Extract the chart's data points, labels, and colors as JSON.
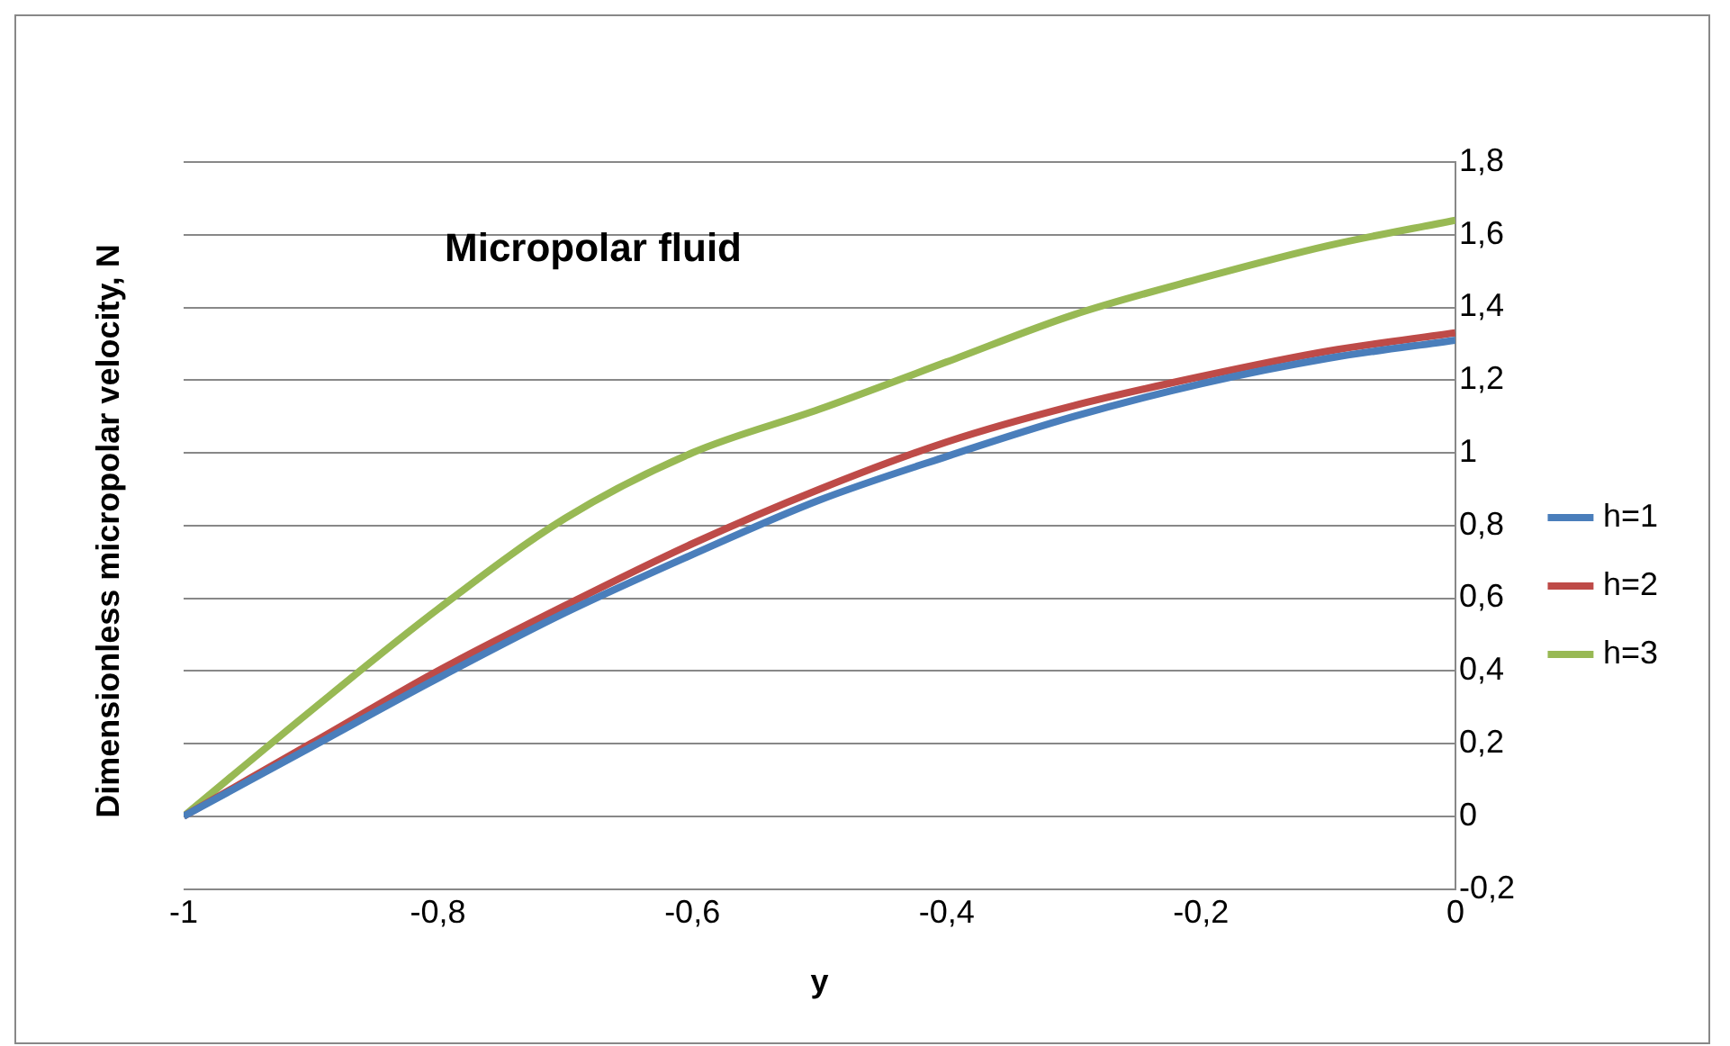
{
  "chart_data": {
    "type": "line",
    "title": "Micropolar fluid",
    "xlabel": "y",
    "ylabel": "Dimensionless micropolar velocity, N",
    "x": [
      -1,
      -0.9,
      -0.8,
      -0.7,
      -0.6,
      -0.5,
      -0.4,
      -0.3,
      -0.2,
      -0.1,
      0
    ],
    "series": [
      {
        "name": "h=1",
        "color": "#4a7ebb",
        "values": [
          0,
          0.19,
          0.38,
          0.56,
          0.72,
          0.87,
          0.99,
          1.1,
          1.19,
          1.26,
          1.31
        ]
      },
      {
        "name": "h=2",
        "color": "#be4b48",
        "values": [
          0,
          0.2,
          0.4,
          0.58,
          0.75,
          0.9,
          1.03,
          1.13,
          1.21,
          1.28,
          1.33
        ]
      },
      {
        "name": "h=3",
        "color": "#98b954",
        "values": [
          0,
          0.29,
          0.57,
          0.82,
          1.0,
          1.12,
          1.25,
          1.38,
          1.48,
          1.57,
          1.64
        ]
      }
    ],
    "xlim": [
      -1,
      0
    ],
    "xticks": [
      -1,
      {
        "value": -0.8,
        "label": "-0,8"
      },
      {
        "value": -0.6,
        "label": "-0,6"
      },
      {
        "value": -0.4,
        "label": "-0,4"
      },
      {
        "value": -0.2,
        "label": "-0,2"
      },
      0
    ],
    "ylim": [
      -0.2,
      1.8
    ],
    "yticks": [
      {
        "value": -0.2,
        "label": "-0,2"
      },
      0,
      {
        "value": 0.2,
        "label": "0,2"
      },
      {
        "value": 0.4,
        "label": "0,4"
      },
      {
        "value": 0.6,
        "label": "0,6"
      },
      {
        "value": 0.8,
        "label": "0,8"
      },
      1,
      {
        "value": 1.2,
        "label": "1,2"
      },
      {
        "value": 1.4,
        "label": "1,4"
      },
      {
        "value": 1.6,
        "label": "1,6"
      },
      {
        "value": 1.8,
        "label": "1,8"
      }
    ],
    "grid": "y",
    "legend": "right",
    "marker": "none",
    "line_style": "solid"
  }
}
